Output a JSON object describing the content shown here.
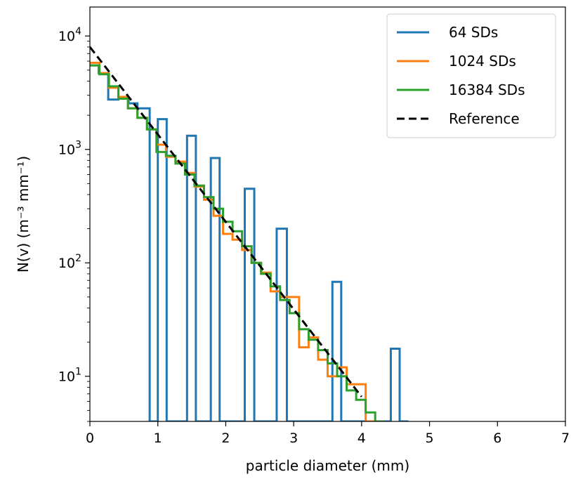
{
  "chart_data": {
    "type": "step",
    "xlabel": "particle diameter (mm)",
    "ylabel": "N(v) (m⁻³ mm⁻¹)",
    "xlim": [
      0,
      7
    ],
    "ylim": [
      4,
      18000
    ],
    "yscale": "log",
    "grid": false,
    "legend_position": "top-right",
    "x_ticks": [
      0,
      1,
      2,
      3,
      4,
      5,
      6,
      7
    ],
    "y_ticks": [
      {
        "value": 10,
        "base": "10",
        "exp": "1"
      },
      {
        "value": 100,
        "base": "10",
        "exp": "2"
      },
      {
        "value": 1000,
        "base": "10",
        "exp": "3"
      },
      {
        "value": 10000,
        "base": "10",
        "exp": "4"
      }
    ],
    "series": [
      {
        "name": "64 SDs",
        "color": "#1f77b4",
        "kind": "step",
        "points": [
          [
            0,
            5500
          ],
          [
            0.13,
            4700
          ],
          [
            0.27,
            2750
          ],
          [
            0.42,
            2850
          ],
          [
            0.57,
            2550
          ],
          [
            0.7,
            2300
          ],
          [
            0.88,
            4
          ],
          [
            1.0,
            1850
          ],
          [
            1.13,
            4
          ],
          [
            1.43,
            1320
          ],
          [
            1.56,
            4
          ],
          [
            1.78,
            840
          ],
          [
            1.91,
            4
          ],
          [
            2.28,
            450
          ],
          [
            2.42,
            4
          ],
          [
            2.75,
            200
          ],
          [
            2.9,
            4
          ],
          [
            3.57,
            68
          ],
          [
            3.7,
            4
          ],
          [
            4.43,
            17.5
          ],
          [
            4.56,
            4
          ]
        ]
      },
      {
        "name": "1024 SDs",
        "color": "#ff7f0e",
        "kind": "step",
        "points": [
          [
            0,
            5800
          ],
          [
            0.14,
            4700
          ],
          [
            0.28,
            3500
          ],
          [
            0.42,
            2900
          ],
          [
            0.56,
            2300
          ],
          [
            0.7,
            1900
          ],
          [
            0.84,
            1500
          ],
          [
            0.98,
            1100
          ],
          [
            1.12,
            860
          ],
          [
            1.26,
            780
          ],
          [
            1.4,
            620
          ],
          [
            1.54,
            470
          ],
          [
            1.68,
            360
          ],
          [
            1.82,
            260
          ],
          [
            1.96,
            180
          ],
          [
            2.1,
            160
          ],
          [
            2.24,
            130
          ],
          [
            2.38,
            100
          ],
          [
            2.52,
            82
          ],
          [
            2.66,
            56
          ],
          [
            2.8,
            50
          ],
          [
            2.94,
            50
          ],
          [
            3.08,
            18
          ],
          [
            3.22,
            22
          ],
          [
            3.36,
            14
          ],
          [
            3.5,
            10
          ],
          [
            3.64,
            12
          ],
          [
            3.78,
            8.5
          ],
          [
            4.06,
            4
          ],
          [
            4.2,
            4
          ]
        ]
      },
      {
        "name": "16384 SDs",
        "color": "#2ca02c",
        "kind": "step",
        "points": [
          [
            0,
            5500
          ],
          [
            0.14,
            4600
          ],
          [
            0.28,
            3600
          ],
          [
            0.42,
            2800
          ],
          [
            0.56,
            2300
          ],
          [
            0.7,
            1900
          ],
          [
            0.84,
            1500
          ],
          [
            0.98,
            950
          ],
          [
            1.12,
            880
          ],
          [
            1.26,
            750
          ],
          [
            1.4,
            600
          ],
          [
            1.54,
            480
          ],
          [
            1.68,
            380
          ],
          [
            1.82,
            300
          ],
          [
            1.96,
            230
          ],
          [
            2.1,
            190
          ],
          [
            2.24,
            140
          ],
          [
            2.38,
            100
          ],
          [
            2.52,
            80
          ],
          [
            2.66,
            62
          ],
          [
            2.8,
            47
          ],
          [
            2.94,
            36
          ],
          [
            3.08,
            26
          ],
          [
            3.22,
            21
          ],
          [
            3.36,
            17
          ],
          [
            3.5,
            13
          ],
          [
            3.64,
            10
          ],
          [
            3.78,
            7.5
          ],
          [
            3.92,
            6.2
          ],
          [
            4.06,
            4.8
          ],
          [
            4.2,
            4
          ]
        ]
      },
      {
        "name": "Reference",
        "color": "#000000",
        "kind": "dashed",
        "points": [
          [
            0,
            8000
          ],
          [
            4.0,
            6.6
          ]
        ]
      }
    ]
  }
}
